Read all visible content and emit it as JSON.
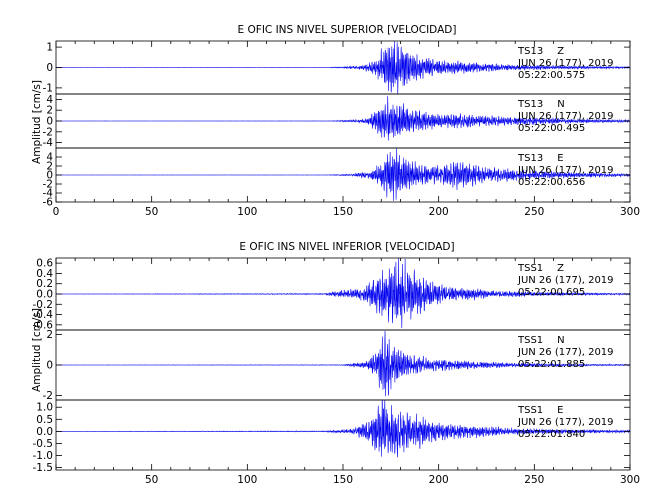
{
  "colors": {
    "trace": "#0000ee",
    "axis": "#000000",
    "background": "#ffffff"
  },
  "chart_data": [
    {
      "type": "line",
      "title": "E OFIC INS NIVEL SUPERIOR [VELOCIDAD]",
      "ylabel": "Amplitud [cm/s]",
      "xlim": [
        0,
        300
      ],
      "x_ticks": [
        "0",
        "50",
        "100",
        "150",
        "200",
        "250",
        "300"
      ],
      "show_x_tick_labels": true,
      "panels": [
        {
          "ylim": [
            -1.3,
            1.3
          ],
          "y_ticks": [
            "-1",
            "0",
            "1"
          ],
          "y_tick_values": [
            -1,
            0,
            1
          ],
          "station": "TS13",
          "component": "Z",
          "date": "JUN 26 (177), 2019",
          "time": "05:22:00.575",
          "envelope": [
            [
              0,
              0.002
            ],
            [
              142,
              0.005
            ],
            [
              150,
              0.04
            ],
            [
              160,
              0.1
            ],
            [
              166,
              0.3
            ],
            [
              170,
              0.85
            ],
            [
              176,
              1.25
            ],
            [
              180,
              1.1
            ],
            [
              188,
              0.6
            ],
            [
              200,
              0.35
            ],
            [
              215,
              0.25
            ],
            [
              240,
              0.12
            ],
            [
              270,
              0.07
            ],
            [
              300,
              0.04
            ]
          ]
        },
        {
          "ylim": [
            -5,
            5
          ],
          "y_ticks": [
            "-4",
            "-2",
            "0",
            "2",
            "4"
          ],
          "y_tick_values": [
            -4,
            -2,
            0,
            2,
            4
          ],
          "station": "TS13",
          "component": "N",
          "date": "JUN 26 (177), 2019",
          "time": "05:22:00.495",
          "envelope": [
            [
              0,
              0.01
            ],
            [
              142,
              0.03
            ],
            [
              152,
              0.15
            ],
            [
              162,
              0.4
            ],
            [
              168,
              2.0
            ],
            [
              174,
              4.2
            ],
            [
              180,
              3.2
            ],
            [
              188,
              1.9
            ],
            [
              200,
              1.1
            ],
            [
              212,
              1.4
            ],
            [
              225,
              0.9
            ],
            [
              250,
              0.6
            ],
            [
              280,
              0.3
            ],
            [
              300,
              0.2
            ]
          ]
        },
        {
          "ylim": [
            -6,
            6
          ],
          "y_ticks": [
            "-6",
            "-4",
            "-2",
            "0",
            "2",
            "4"
          ],
          "y_tick_values": [
            -6,
            -4,
            -2,
            0,
            2,
            4
          ],
          "station": "TS13",
          "component": "E",
          "date": "JUN 26 (177), 2019",
          "time": "05:22:00.656",
          "envelope": [
            [
              0,
              0.01
            ],
            [
              140,
              0.03
            ],
            [
              155,
              0.2
            ],
            [
              165,
              1.0
            ],
            [
              170,
              3.0
            ],
            [
              176,
              5.5
            ],
            [
              182,
              4.0
            ],
            [
              190,
              2.2
            ],
            [
              200,
              2.0
            ],
            [
              210,
              3.0
            ],
            [
              222,
              1.8
            ],
            [
              245,
              1.0
            ],
            [
              270,
              0.6
            ],
            [
              300,
              0.3
            ]
          ]
        }
      ]
    },
    {
      "type": "line",
      "title": "E OFIC INS NIVEL INFERIOR [VELOCIDAD]",
      "ylabel": "Amplitud [cm/s]",
      "xlim": [
        0,
        300
      ],
      "x_ticks": [
        "50",
        "100",
        "150",
        "200",
        "250",
        "300"
      ],
      "show_x_tick_labels": true,
      "panels": [
        {
          "ylim": [
            -0.7,
            0.7
          ],
          "y_ticks": [
            "-0.6",
            "-0.4",
            "-0.2",
            "0.0",
            "0.2",
            "0.4",
            "0.6"
          ],
          "y_tick_values": [
            -0.6,
            -0.4,
            -0.2,
            0,
            0.2,
            0.4,
            0.6
          ],
          "station": "TSS1",
          "component": "Z",
          "date": "JUN 26 (177), 2019",
          "time": "05:22:00.695",
          "envelope": [
            [
              0,
              0.002
            ],
            [
              140,
              0.01
            ],
            [
              146,
              0.05
            ],
            [
              160,
              0.12
            ],
            [
              166,
              0.3
            ],
            [
              172,
              0.45
            ],
            [
              178,
              0.65
            ],
            [
              184,
              0.55
            ],
            [
              192,
              0.3
            ],
            [
              205,
              0.15
            ],
            [
              230,
              0.06
            ],
            [
              260,
              0.03
            ],
            [
              300,
              0.015
            ]
          ]
        },
        {
          "ylim": [
            -2.3,
            2.3
          ],
          "y_ticks": [
            "-2",
            "0",
            "2"
          ],
          "y_tick_values": [
            -2,
            0,
            2
          ],
          "station": "TSS1",
          "component": "N",
          "date": "JUN 26 (177), 2019",
          "time": "05:22:01.885",
          "envelope": [
            [
              0,
              0.005
            ],
            [
              150,
              0.02
            ],
            [
              162,
              0.2
            ],
            [
              168,
              1.0
            ],
            [
              171,
              2.2
            ],
            [
              176,
              1.4
            ],
            [
              182,
              0.8
            ],
            [
              195,
              0.4
            ],
            [
              210,
              0.3
            ],
            [
              240,
              0.12
            ],
            [
              270,
              0.06
            ],
            [
              300,
              0.04
            ]
          ]
        },
        {
          "ylim": [
            -1.6,
            1.3
          ],
          "y_ticks": [
            "-1.5",
            "-1.0",
            "-0.5",
            "0.0",
            "0.5",
            "1.0"
          ],
          "y_tick_values": [
            -1.5,
            -1.0,
            -0.5,
            0,
            0.5,
            1.0
          ],
          "station": "TSS1",
          "component": "E",
          "date": "JUN 26 (177), 2019",
          "time": "05:22:01.840",
          "envelope": [
            [
              0,
              0.003
            ],
            [
              140,
              0.02
            ],
            [
              155,
              0.1
            ],
            [
              165,
              0.5
            ],
            [
              171,
              1.4
            ],
            [
              176,
              1.0
            ],
            [
              182,
              0.9
            ],
            [
              190,
              0.6
            ],
            [
              200,
              0.35
            ],
            [
              215,
              0.25
            ],
            [
              240,
              0.12
            ],
            [
              270,
              0.07
            ],
            [
              300,
              0.05
            ]
          ]
        }
      ]
    }
  ]
}
